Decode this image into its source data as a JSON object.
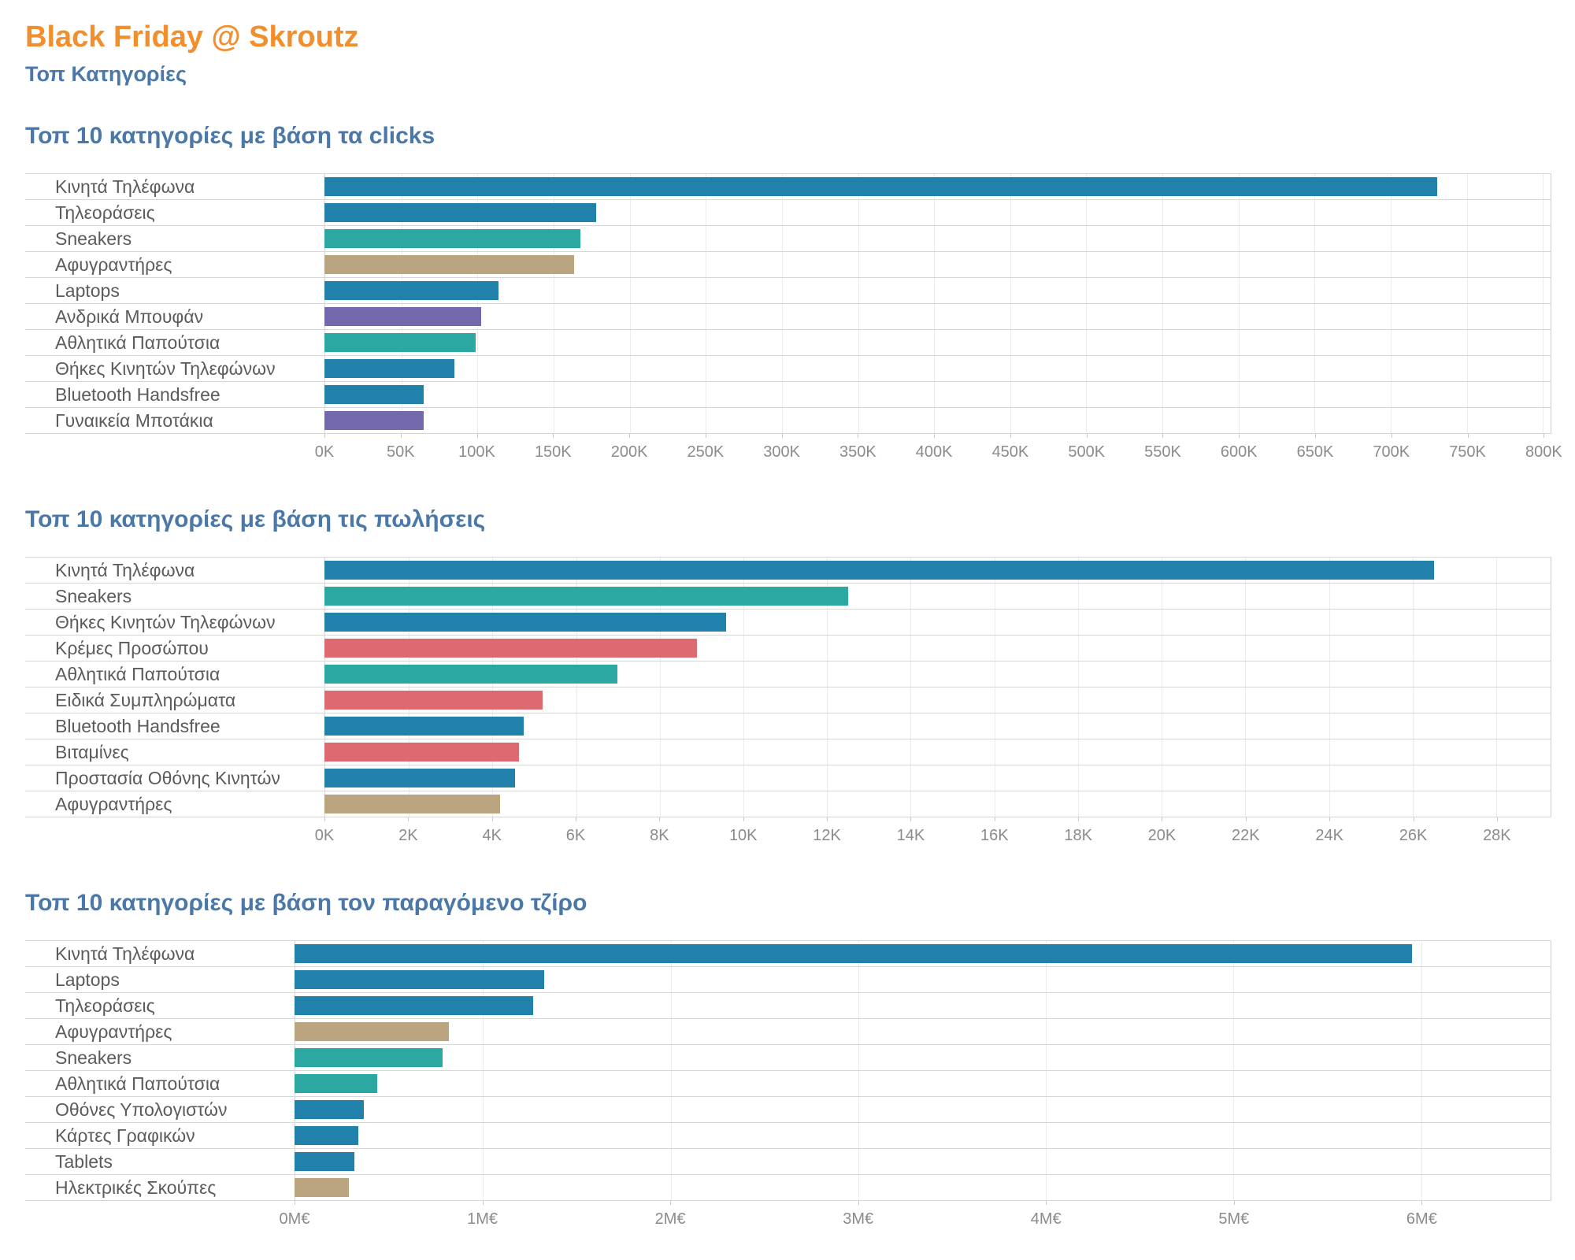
{
  "page": {
    "title": "Black Friday @ Skroutz",
    "subtitle": "Τοπ Κατηγορίες",
    "title_color": "#f28e2b",
    "heading_color": "#4a78a8"
  },
  "palette": {
    "blue": "#2181ab",
    "teal": "#2ba8a2",
    "tan": "#bba480",
    "purple": "#7468ac",
    "red": "#dc6a70"
  },
  "chart_data": [
    {
      "type": "bar",
      "orientation": "horizontal",
      "title": "Τοπ 10 κατηγορίες με βάση τα clicks",
      "xlabel": "",
      "ylabel": "",
      "grid": true,
      "legend": false,
      "categories": [
        "Κινητά Τηλέφωνα",
        "Τηλεοράσεις",
        "Sneakers",
        "Αφυγραντήρες",
        "Laptops",
        "Ανδρικά Μπουφάν",
        "Αθλητικά Παπούτσια",
        "Θήκες Κινητών Τηλεφώνων",
        "Bluetooth Handsfree",
        "Γυναικεία Μποτάκια"
      ],
      "values": [
        730000,
        178000,
        168000,
        164000,
        114000,
        103000,
        99000,
        85000,
        65000,
        65000
      ],
      "colors": [
        "blue",
        "blue",
        "teal",
        "tan",
        "blue",
        "purple",
        "teal",
        "blue",
        "blue",
        "purple"
      ],
      "tick_values": [
        0,
        50000,
        100000,
        150000,
        200000,
        250000,
        300000,
        350000,
        400000,
        450000,
        500000,
        550000,
        600000,
        650000,
        700000,
        750000,
        800000
      ],
      "tick_labels": [
        "0K",
        "50K",
        "100K",
        "150K",
        "200K",
        "250K",
        "300K",
        "350K",
        "400K",
        "450K",
        "500K",
        "550K",
        "600K",
        "650K",
        "700K",
        "750K",
        "800K"
      ],
      "xlim": [
        0,
        805000
      ],
      "label_col": 380
    },
    {
      "type": "bar",
      "orientation": "horizontal",
      "title": "Τοπ 10 κατηγορίες με βάση τις πωλήσεις",
      "xlabel": "",
      "ylabel": "",
      "grid": true,
      "legend": false,
      "categories": [
        "Κινητά Τηλέφωνα",
        "Sneakers",
        "Θήκες Κινητών Τηλεφώνων",
        "Κρέμες Προσώπου",
        "Αθλητικά Παπούτσια",
        "Ειδικά Συμπληρώματα",
        "Bluetooth Handsfree",
        "Βιταμίνες",
        "Προστασία Οθόνης Κινητών",
        "Αφυγραντήρες"
      ],
      "values": [
        26500,
        12500,
        9600,
        8900,
        7000,
        5200,
        4750,
        4650,
        4550,
        4200
      ],
      "colors": [
        "blue",
        "teal",
        "blue",
        "red",
        "teal",
        "red",
        "blue",
        "red",
        "blue",
        "tan"
      ],
      "tick_values": [
        0,
        2000,
        4000,
        6000,
        8000,
        10000,
        12000,
        14000,
        16000,
        18000,
        20000,
        22000,
        24000,
        26000,
        28000
      ],
      "tick_labels": [
        "0K",
        "2K",
        "4K",
        "6K",
        "8K",
        "10K",
        "12K",
        "14K",
        "16K",
        "18K",
        "20K",
        "22K",
        "24K",
        "26K",
        "28K"
      ],
      "xlim": [
        0,
        29300
      ],
      "label_col": 380
    },
    {
      "type": "bar",
      "orientation": "horizontal",
      "title": "Τοπ 10 κατηγορίες με βάση τον παραγόμενο τζίρο",
      "xlabel": "",
      "ylabel": "",
      "grid": true,
      "legend": false,
      "categories": [
        "Κινητά Τηλέφωνα",
        "Laptops",
        "Τηλεοράσεις",
        "Αφυγραντήρες",
        "Sneakers",
        "Αθλητικά Παπούτσια",
        "Οθόνες Υπολογιστών",
        "Κάρτες Γραφικών",
        "Tablets",
        "Ηλεκτρικές Σκούπες"
      ],
      "values": [
        5950000,
        1330000,
        1270000,
        820000,
        790000,
        440000,
        370000,
        340000,
        320000,
        290000
      ],
      "colors": [
        "blue",
        "blue",
        "blue",
        "tan",
        "teal",
        "teal",
        "blue",
        "blue",
        "blue",
        "tan"
      ],
      "tick_values": [
        0,
        1000000,
        2000000,
        3000000,
        4000000,
        5000000,
        6000000
      ],
      "tick_labels": [
        "0M€",
        "1M€",
        "2M€",
        "3M€",
        "4M€",
        "5M€",
        "6M€"
      ],
      "xlim": [
        0,
        6690000
      ],
      "label_col": 342
    }
  ]
}
